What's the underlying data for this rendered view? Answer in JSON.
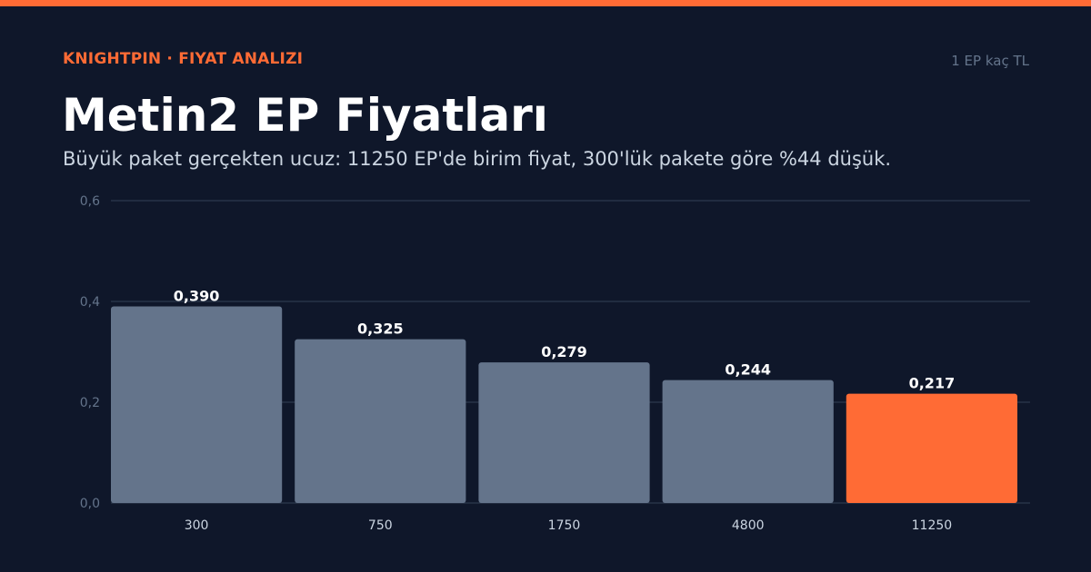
{
  "header": {
    "brand": "KNIGHTPIN · FIYAT ANALIZI",
    "unit_note": "1 EP kaç TL",
    "title": "Metin2 EP Fiyatları",
    "subtitle": "Büyük paket gerçekten ucuz: 11250 EP'de birim fiyat, 300'lük pakete göre %44 düşük."
  },
  "colors": {
    "background": "#0f172a",
    "accent": "#ff6b35",
    "bar": "#64748b",
    "grid": "#334155"
  },
  "chart_data": {
    "type": "bar",
    "title": "Metin2 EP Fiyatları",
    "xlabel": "",
    "ylabel": "",
    "categories": [
      "300",
      "750",
      "1750",
      "4800",
      "11250"
    ],
    "values": [
      0.39,
      0.325,
      0.279,
      0.244,
      0.217
    ],
    "value_labels": [
      "0,390",
      "0,325",
      "0,279",
      "0,244",
      "0,217"
    ],
    "highlight_index": 4,
    "ylim": [
      0,
      0.6
    ],
    "yticks": [
      0,
      0.2,
      0.4,
      0.6
    ],
    "ytick_labels": [
      "0,0",
      "0,2",
      "0,4",
      "0,6"
    ],
    "grid": true,
    "legend": "none"
  }
}
